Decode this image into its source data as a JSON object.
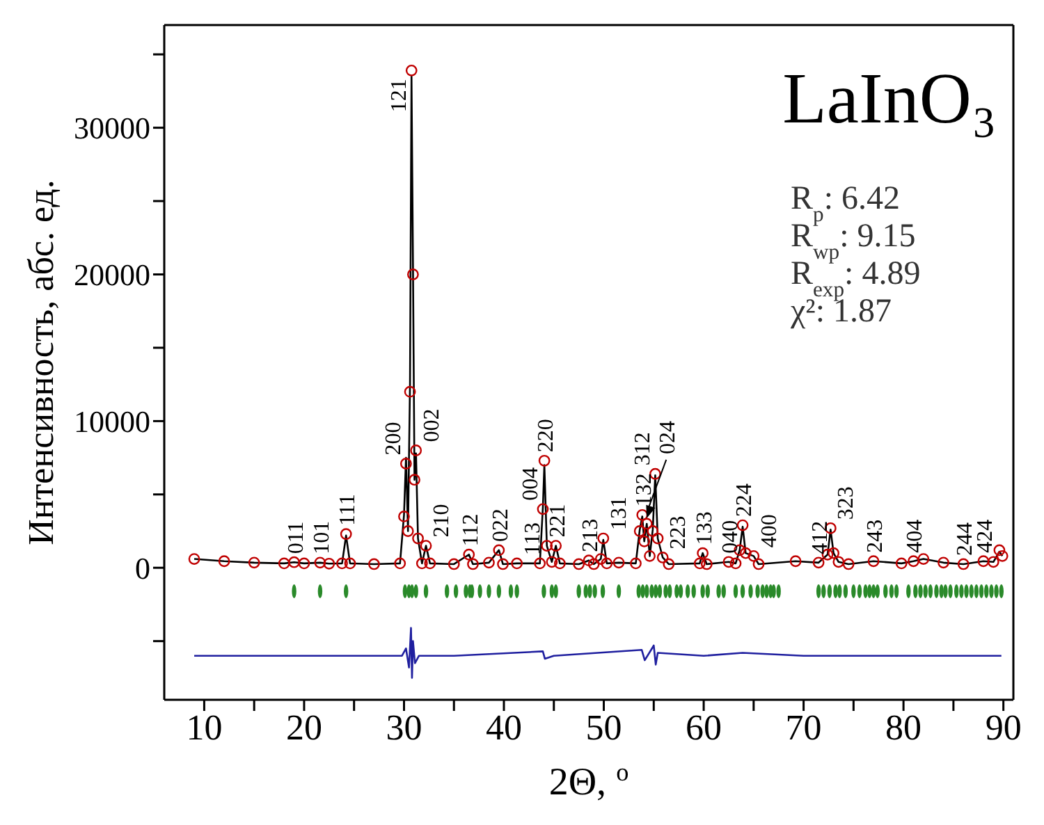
{
  "chart_data": {
    "type": "scatter",
    "xlabel": "2Θ, $^{o}$",
    "ylabel": "Интенсивность, абс. ед.",
    "xlim": [
      6,
      91
    ],
    "ylim": [
      -9000,
      37000
    ],
    "xticks": [
      10,
      {
        "value": 15,
        "label": null
      },
      20,
      {
        "value": 25,
        "label": null
      },
      30,
      {
        "value": 35,
        "label": null
      },
      40,
      {
        "value": 45,
        "label": null
      },
      50,
      {
        "value": 55,
        "label": null
      },
      60,
      {
        "value": 65,
        "label": null
      },
      70,
      {
        "value": 75,
        "label": null
      },
      80,
      {
        "value": 85,
        "label": null
      },
      90
    ],
    "yticks": [
      {
        "value": -5000,
        "label": null
      },
      0,
      {
        "value": 5000,
        "label": null
      },
      10000,
      {
        "value": 15000,
        "label": null
      },
      20000,
      {
        "value": 25000,
        "label": null
      },
      30000,
      {
        "value": 35000,
        "label": null
      }
    ],
    "series": [
      {
        "marker": "circle",
        "color": "#c00000",
        "x": [
          9,
          12,
          15,
          18,
          19,
          20,
          21.6,
          22.5,
          23.8,
          24.2,
          24.6,
          27,
          29.6,
          30.0,
          30.2,
          30.4,
          30.6,
          30.75,
          30.9,
          31.05,
          31.2,
          31.4,
          31.8,
          32.2,
          32.6,
          35,
          36.5,
          36.9,
          38.5,
          39.5,
          39.9,
          41.3,
          43.6,
          43.9,
          44.05,
          44.3,
          44.8,
          45.2,
          45.6,
          47.5,
          48.5,
          49,
          49.7,
          49.95,
          50.3,
          51.5,
          53.2,
          53.6,
          53.85,
          54.05,
          54.3,
          54.6,
          54.9,
          55.15,
          55.4,
          55.9,
          56.5,
          59.6,
          59.9,
          60.3,
          62.5,
          63.2,
          63.6,
          63.9,
          64.2,
          65,
          65.5,
          69.2,
          71.5,
          72.4,
          72.7,
          73.0,
          73.5,
          74.5,
          77,
          79.8,
          81,
          82,
          84,
          86,
          88,
          89,
          89.6,
          89.9
        ],
        "values": [
          600,
          450,
          350,
          300,
          380,
          300,
          350,
          280,
          300,
          2300,
          300,
          250,
          300,
          3500,
          7100,
          2500,
          12000,
          33900,
          20000,
          6000,
          8000,
          2000,
          300,
          1500,
          300,
          250,
          900,
          250,
          350,
          1200,
          250,
          300,
          300,
          4000,
          7300,
          1500,
          400,
          1500,
          300,
          250,
          500,
          250,
          600,
          2000,
          300,
          350,
          300,
          2500,
          3600,
          1800,
          3000,
          800,
          2500,
          6400,
          2000,
          700,
          250,
          300,
          1000,
          250,
          400,
          300,
          1200,
          2900,
          1000,
          800,
          250,
          450,
          350,
          900,
          2700,
          1000,
          400,
          250,
          450,
          300,
          450,
          600,
          350,
          250,
          450,
          400,
          1200,
          800
        ]
      },
      {
        "type": "line",
        "marker": "none",
        "color": "#000000",
        "x": [
          9,
          12,
          15,
          18,
          19,
          20,
          21.6,
          22.5,
          23.8,
          24.2,
          24.6,
          27,
          29.6,
          30.0,
          30.2,
          30.4,
          30.6,
          30.75,
          30.9,
          31.05,
          31.2,
          31.4,
          31.8,
          32.2,
          32.6,
          35,
          36.5,
          36.9,
          38.5,
          39.5,
          39.9,
          41.3,
          43.6,
          43.9,
          44.05,
          44.3,
          44.8,
          45.2,
          45.6,
          47.5,
          48.5,
          49,
          49.7,
          49.95,
          50.3,
          51.5,
          53.2,
          53.6,
          53.85,
          54.05,
          54.3,
          54.6,
          54.9,
          55.15,
          55.4,
          55.9,
          56.5,
          59.6,
          59.9,
          60.3,
          62.5,
          63.2,
          63.6,
          63.9,
          64.2,
          65,
          65.5,
          69.2,
          71.5,
          72.4,
          72.7,
          73.0,
          73.5,
          74.5,
          77,
          79.8,
          81,
          82,
          84,
          86,
          88,
          89,
          89.6,
          89.9
        ],
        "values": [
          600,
          450,
          350,
          300,
          380,
          300,
          350,
          280,
          300,
          2200,
          300,
          250,
          300,
          3600,
          7500,
          2500,
          12500,
          33500,
          20500,
          6000,
          7800,
          2000,
          300,
          1500,
          300,
          250,
          900,
          250,
          350,
          1200,
          250,
          300,
          300,
          4100,
          7000,
          1500,
          400,
          1500,
          300,
          250,
          500,
          250,
          600,
          1900,
          300,
          350,
          300,
          2600,
          3500,
          1800,
          3000,
          800,
          2600,
          6300,
          2000,
          700,
          250,
          300,
          1000,
          250,
          400,
          300,
          1200,
          2800,
          1000,
          800,
          250,
          450,
          350,
          900,
          2600,
          1000,
          400,
          250,
          450,
          300,
          450,
          600,
          350,
          250,
          450,
          400,
          1100,
          800
        ]
      },
      {
        "type": "scatter",
        "color": "#2a8a2a",
        "x": [
          19,
          21.6,
          24.2,
          30.1,
          30.5,
          30.8,
          31.2,
          32.2,
          34.3,
          35.2,
          36.2,
          36.6,
          36.8,
          37.6,
          38.5,
          39.5,
          40.7,
          41.3,
          44,
          44.8,
          45.2,
          47.5,
          48.2,
          48.6,
          49.1,
          49.9,
          51.5,
          53.5,
          53.9,
          54.3,
          54.8,
          55.2,
          55.6,
          56.2,
          56.6,
          57.3,
          57.7,
          58.4,
          59,
          59.9,
          60.4,
          61.5,
          62,
          63.2,
          63.9,
          64.7,
          65.4,
          65.9,
          66.3,
          66.7,
          67,
          67.5,
          71.5,
          72,
          72.6,
          73.2,
          73.6,
          74.2,
          75,
          75.6,
          76.2,
          76.6,
          77,
          77.4,
          78.2,
          78.8,
          79.3,
          80.5,
          81.2,
          81.7,
          82.2,
          82.7,
          83.3,
          83.8,
          84.2,
          84.7,
          85.3,
          85.8,
          86.3,
          86.8,
          87.3,
          87.8,
          88.3,
          88.8,
          89.3,
          89.8
        ],
        "values": [
          -1600,
          -1600,
          -1600,
          -1600,
          -1600,
          -1600,
          -1600,
          -1600,
          -1600,
          -1600,
          -1600,
          -1600,
          -1600,
          -1600,
          -1600,
          -1600,
          -1600,
          -1600,
          -1600,
          -1600,
          -1600,
          -1600,
          -1600,
          -1600,
          -1600,
          -1600,
          -1600,
          -1600,
          -1600,
          -1600,
          -1600,
          -1600,
          -1600,
          -1600,
          -1600,
          -1600,
          -1600,
          -1600,
          -1600,
          -1600,
          -1600,
          -1600,
          -1600,
          -1600,
          -1600,
          -1600,
          -1600,
          -1600,
          -1600,
          -1600,
          -1600,
          -1600,
          -1600,
          -1600,
          -1600,
          -1600,
          -1600,
          -1600,
          -1600,
          -1600,
          -1600,
          -1600,
          -1600,
          -1600,
          -1600,
          -1600,
          -1600,
          -1600,
          -1600,
          -1600,
          -1600,
          -1600,
          -1600,
          -1600,
          -1600,
          -1600,
          -1600,
          -1600,
          -1600,
          -1600,
          -1600,
          -1600,
          -1600,
          -1600,
          -1600,
          -1600
        ]
      },
      {
        "type": "line",
        "marker": "none",
        "color": "#1f1f9f",
        "x": [
          9,
          20,
          29.8,
          30.2,
          30.5,
          30.7,
          30.8,
          30.9,
          31.1,
          31.5,
          35,
          43.9,
          44.1,
          45,
          53.8,
          54.1,
          55.0,
          55.2,
          55.4,
          60,
          63.9,
          70,
          80,
          89.8
        ],
        "values": [
          -6000,
          -6000,
          -6000,
          -5500,
          -6800,
          -4100,
          -7500,
          -5000,
          -6500,
          -6000,
          -6000,
          -5700,
          -6200,
          -6000,
          -5600,
          -6300,
          -5300,
          -6600,
          -5800,
          -6000,
          -5800,
          -6000,
          -6000,
          -6000
        ]
      }
    ],
    "annotations": [
      "LaInO₃",
      "R$_{p}$:  6.42",
      "R$_{wp}$:  9.15",
      "R$_{exp}$:    4.89",
      "χ²:  1.87",
      {
        "text": "011",
        "x": 19,
        "y": 380
      },
      {
        "text": "101",
        "x": 21.6,
        "y": 350
      },
      {
        "text": "111",
        "x": 24.2,
        "y": 2300
      },
      {
        "text": "200",
        "x": 30.2,
        "y": 7100
      },
      {
        "text": "121",
        "x": 30.75,
        "y": 33900
      },
      {
        "text": "002",
        "x": 31.2,
        "y": 8000
      },
      {
        "text": "210",
        "x": 32.2,
        "y": 1500
      },
      {
        "text": "112",
        "x": 36.5,
        "y": 900
      },
      {
        "text": "022",
        "x": 39.5,
        "y": 1200
      },
      {
        "text": "113",
        "x": 41.3,
        "y": 300
      },
      {
        "text": "004",
        "x": 43.9,
        "y": 4000
      },
      {
        "text": "220",
        "x": 44.05,
        "y": 7300
      },
      {
        "text": "221",
        "x": 45.2,
        "y": 1500
      },
      {
        "text": "213",
        "x": 48.5,
        "y": 500
      },
      {
        "text": "131",
        "x": 49.95,
        "y": 2000
      },
      {
        "text": "132",
        "x": 53.85,
        "y": 3600
      },
      {
        "text": "024",
        "x": 54.3,
        "y": 3000
      },
      {
        "text": "312",
        "x": 55.15,
        "y": 6400
      },
      {
        "text": "223",
        "x": 55.9,
        "y": 700
      },
      {
        "text": "133",
        "x": 59.9,
        "y": 1000
      },
      {
        "text": "040",
        "x": 62.5,
        "y": 400
      },
      {
        "text": "224",
        "x": 63.9,
        "y": 2900
      },
      {
        "text": "400",
        "x": 65,
        "y": 800
      },
      {
        "text": "412",
        "x": 71.5,
        "y": 350
      },
      {
        "text": "323",
        "x": 72.7,
        "y": 2700
      },
      {
        "text": "243",
        "x": 77,
        "y": 450
      },
      {
        "text": "404",
        "x": 81,
        "y": 450
      },
      {
        "text": "244",
        "x": 86,
        "y": 250
      },
      {
        "text": "424",
        "x": 88,
        "y": 450
      }
    ]
  }
}
